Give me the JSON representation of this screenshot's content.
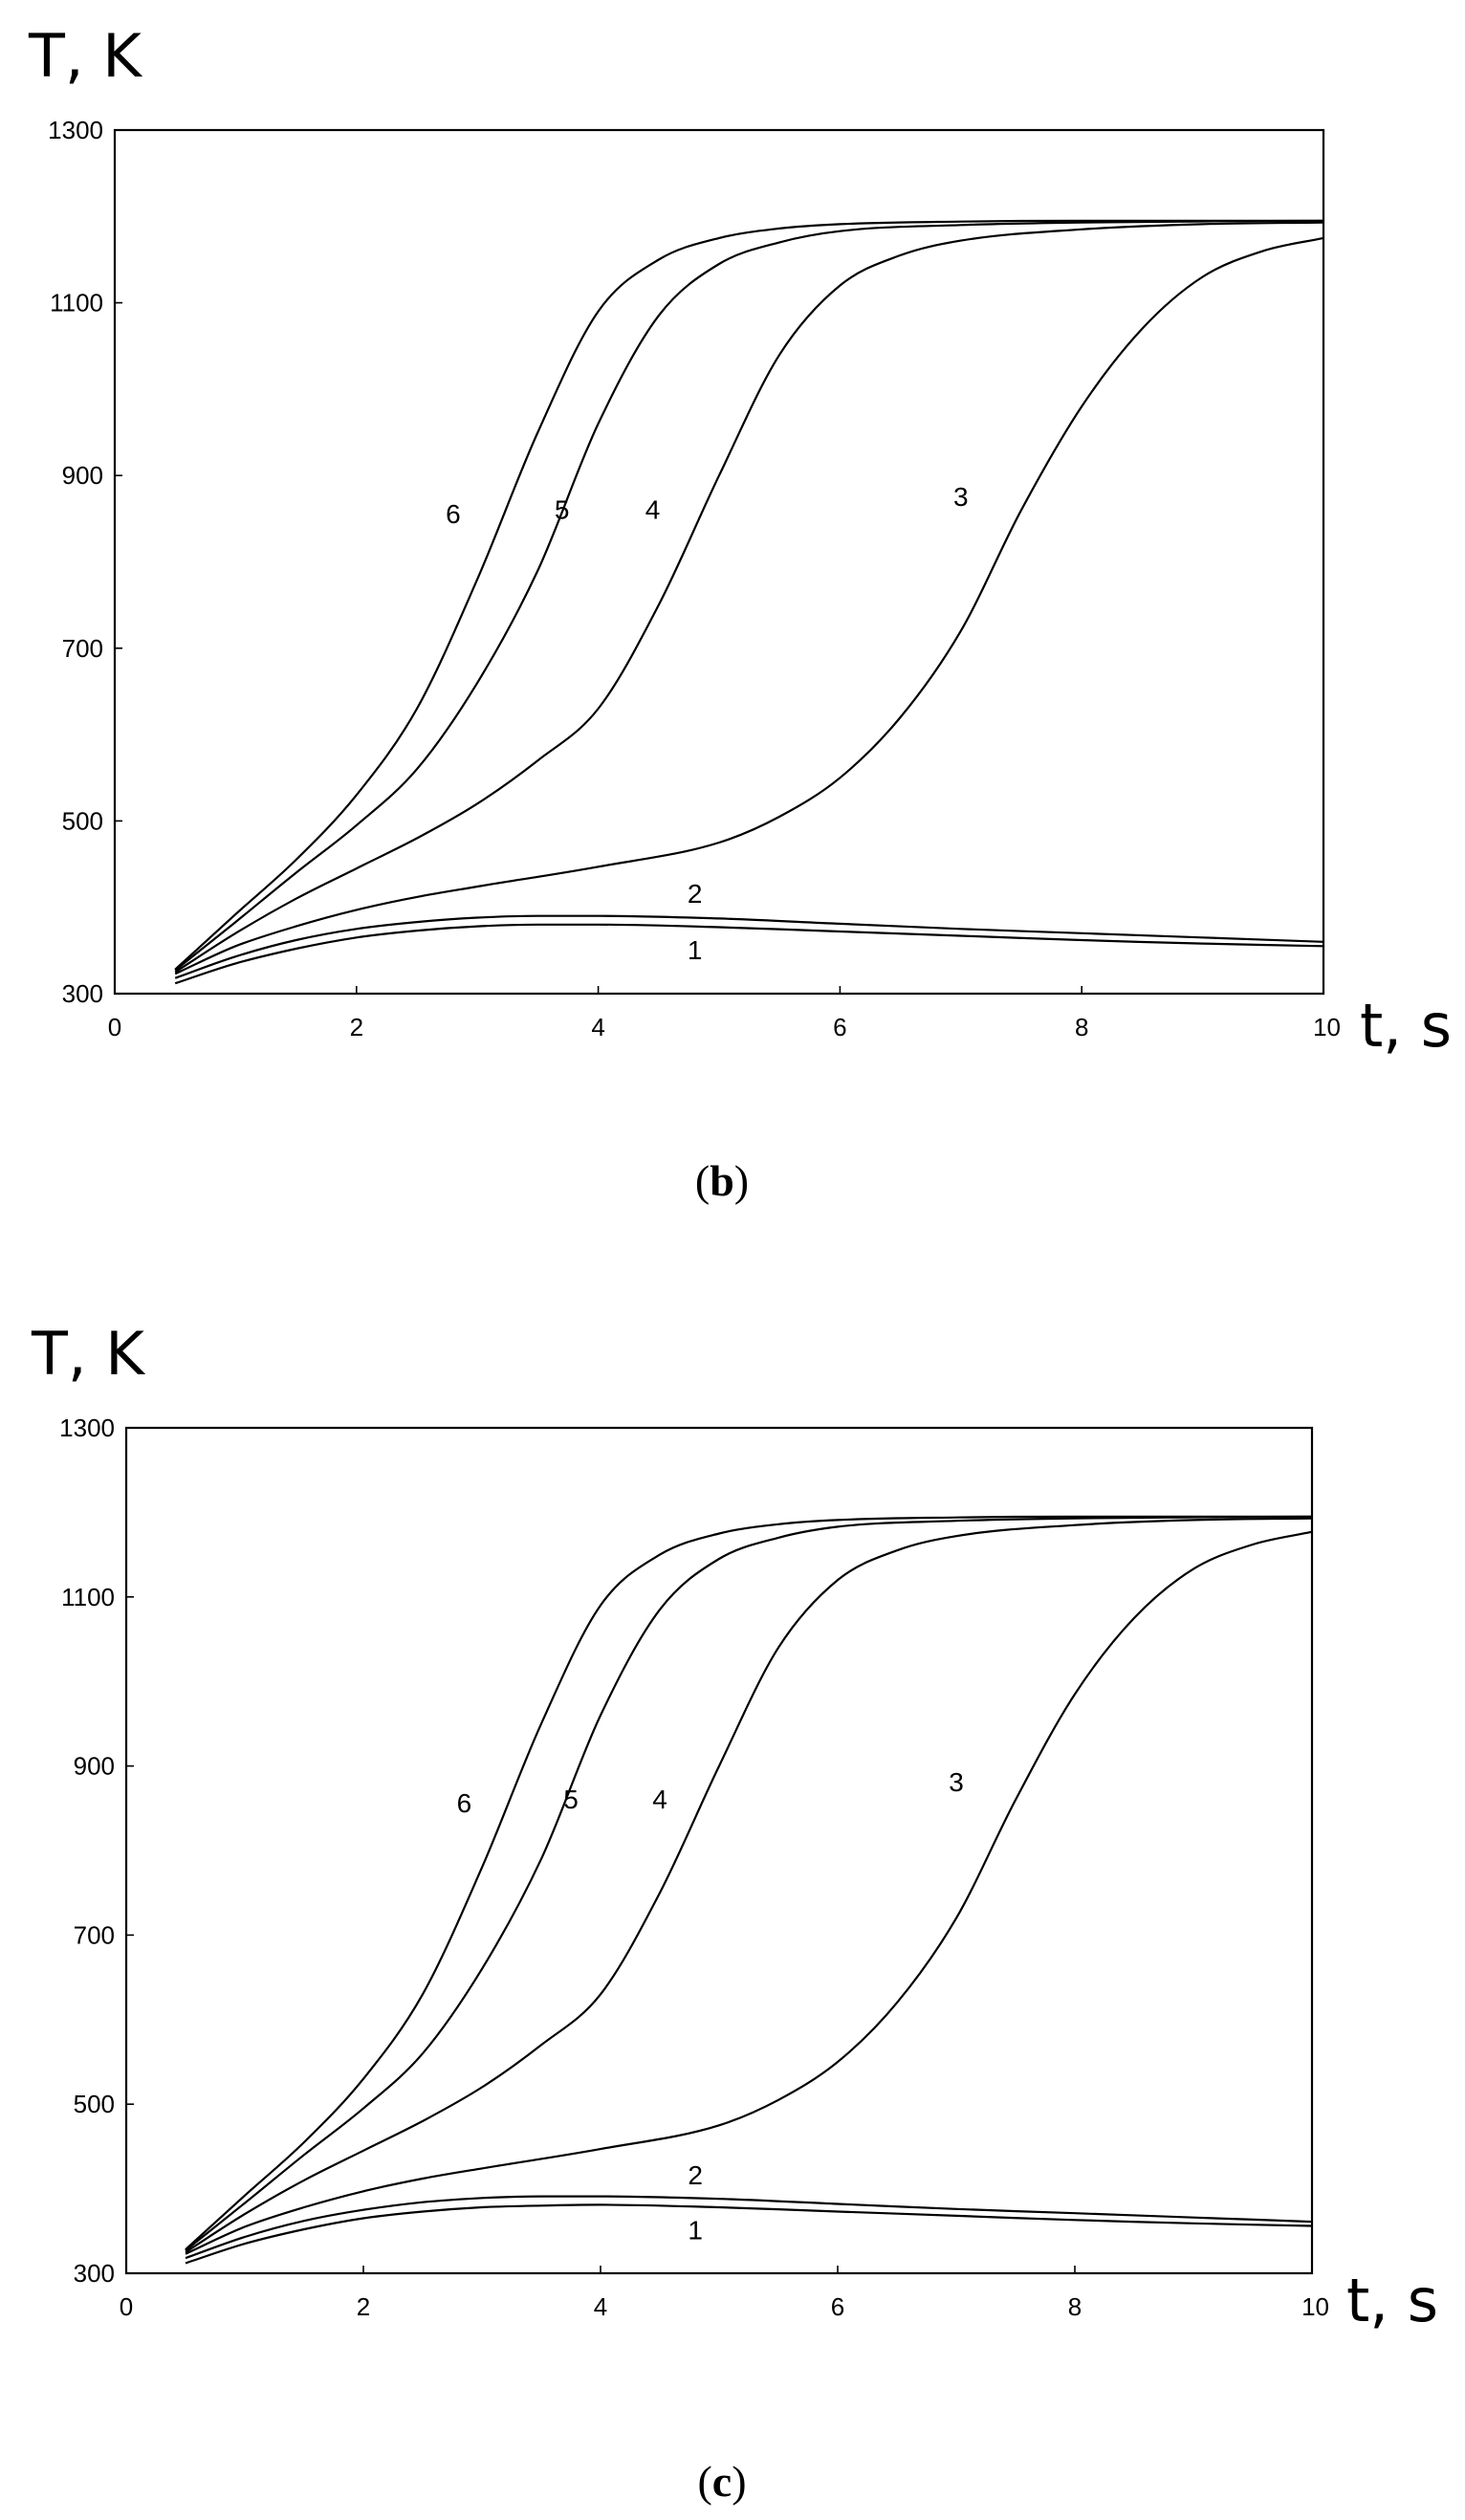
{
  "chart_data": [
    {
      "type": "line",
      "caption": {
        "open": "(",
        "letter": "b",
        "close": ")"
      },
      "ylabel": "T, K",
      "xlabel": "t, s",
      "xlim": [
        0,
        10
      ],
      "ylim": [
        300,
        1300
      ],
      "x_ticks": [
        0,
        2,
        4,
        6,
        8,
        10
      ],
      "y_ticks": [
        300,
        500,
        700,
        900,
        1100,
        1300
      ],
      "grid": false,
      "series": [
        {
          "name": "1",
          "x": [
            0.5,
            1,
            1.5,
            2,
            2.5,
            3,
            3.5,
            4,
            5,
            6,
            7,
            8,
            9,
            10
          ],
          "y": [
            312,
            335,
            352,
            365,
            373,
            378,
            380,
            380,
            377,
            372,
            367,
            362,
            358,
            355
          ]
        },
        {
          "name": "2",
          "x": [
            0.5,
            1,
            1.5,
            2,
            2.5,
            3,
            3.5,
            4,
            5,
            6,
            7,
            8,
            9,
            10
          ],
          "y": [
            318,
            343,
            362,
            375,
            383,
            388,
            390,
            390,
            387,
            381,
            375,
            370,
            365,
            360
          ]
        },
        {
          "name": "3",
          "x": [
            0.5,
            1,
            1.5,
            2,
            2.5,
            3,
            4,
            5,
            5.5,
            6,
            6.5,
            7,
            7.5,
            8,
            8.5,
            9,
            9.5,
            10
          ],
          "y": [
            323,
            355,
            378,
            397,
            412,
            424,
            447,
            475,
            505,
            550,
            620,
            720,
            860,
            980,
            1070,
            1130,
            1160,
            1175
          ]
        },
        {
          "name": "4",
          "x": [
            0.5,
            1,
            1.5,
            2,
            2.5,
            3,
            3.5,
            4,
            4.5,
            5,
            5.5,
            6,
            6.5,
            7,
            8,
            9,
            10
          ],
          "y": [
            325,
            370,
            410,
            445,
            480,
            520,
            570,
            630,
            750,
            900,
            1040,
            1120,
            1155,
            1172,
            1185,
            1191,
            1193
          ]
        },
        {
          "name": "5",
          "x": [
            0.5,
            1,
            1.5,
            2,
            2.5,
            3,
            3.5,
            4,
            4.5,
            5,
            5.5,
            6,
            7,
            8,
            10
          ],
          "y": [
            327,
            383,
            440,
            495,
            560,
            660,
            790,
            960,
            1085,
            1145,
            1170,
            1183,
            1190,
            1193,
            1195
          ]
        },
        {
          "name": "6",
          "x": [
            0.5,
            1,
            1.5,
            2,
            2.5,
            3,
            3.5,
            4,
            4.5,
            5,
            5.5,
            6,
            7,
            8,
            10
          ],
          "y": [
            328,
            392,
            455,
            530,
            630,
            780,
            950,
            1090,
            1150,
            1175,
            1186,
            1191,
            1194,
            1195,
            1195
          ]
        }
      ],
      "curve_labels": [
        {
          "text": "1",
          "x": 4.8,
          "y": 340
        },
        {
          "text": "2",
          "x": 4.8,
          "y": 405
        },
        {
          "text": "3",
          "x": 7.0,
          "y": 865
        },
        {
          "text": "4",
          "x": 4.45,
          "y": 850
        },
        {
          "text": "5",
          "x": 3.7,
          "y": 850
        },
        {
          "text": "6",
          "x": 2.8,
          "y": 845
        }
      ]
    },
    {
      "type": "line",
      "caption": {
        "open": "(",
        "letter": "c",
        "close": ")"
      },
      "ylabel": "T, K",
      "xlabel": "t, s",
      "xlim": [
        0,
        10
      ],
      "ylim": [
        300,
        1300
      ],
      "x_ticks": [
        0,
        2,
        4,
        6,
        8,
        10
      ],
      "y_ticks": [
        300,
        500,
        700,
        900,
        1100,
        1300
      ],
      "grid": false,
      "series": [
        {
          "name": "1",
          "x": [
            0.5,
            1,
            1.5,
            2,
            2.5,
            3,
            3.5,
            4,
            5,
            6,
            7,
            8,
            9,
            10
          ],
          "y": [
            312,
            335,
            352,
            365,
            373,
            378,
            380,
            381,
            378,
            373,
            368,
            363,
            359,
            356
          ]
        },
        {
          "name": "2",
          "x": [
            0.5,
            1,
            1.5,
            2,
            2.5,
            3,
            3.5,
            4,
            5,
            6,
            7,
            8,
            9,
            10
          ],
          "y": [
            318,
            343,
            362,
            375,
            384,
            389,
            391,
            391,
            388,
            382,
            376,
            371,
            366,
            361
          ]
        },
        {
          "name": "3",
          "x": [
            0.5,
            1,
            1.5,
            2,
            2.5,
            3,
            4,
            5,
            5.5,
            6,
            6.5,
            7,
            7.5,
            8,
            8.5,
            9,
            9.5,
            10
          ],
          "y": [
            323,
            355,
            378,
            397,
            412,
            424,
            447,
            475,
            505,
            550,
            620,
            720,
            860,
            985,
            1075,
            1133,
            1162,
            1177
          ]
        },
        {
          "name": "4",
          "x": [
            0.5,
            1,
            1.5,
            2,
            2.5,
            3,
            3.5,
            4,
            4.5,
            5,
            5.5,
            6,
            6.5,
            7,
            8,
            9,
            10
          ],
          "y": [
            325,
            370,
            410,
            445,
            480,
            520,
            570,
            630,
            750,
            900,
            1040,
            1120,
            1155,
            1172,
            1185,
            1191,
            1193
          ]
        },
        {
          "name": "5",
          "x": [
            0.5,
            1,
            1.5,
            2,
            2.5,
            3,
            3.5,
            4,
            4.5,
            5,
            5.5,
            6,
            7,
            8,
            10
          ],
          "y": [
            327,
            383,
            440,
            495,
            560,
            660,
            790,
            960,
            1085,
            1145,
            1170,
            1183,
            1190,
            1193,
            1195
          ]
        },
        {
          "name": "6",
          "x": [
            0.5,
            1,
            1.5,
            2,
            2.5,
            3,
            3.5,
            4,
            4.5,
            5,
            5.5,
            6,
            7,
            8,
            10
          ],
          "y": [
            328,
            392,
            455,
            530,
            630,
            780,
            950,
            1090,
            1150,
            1175,
            1186,
            1191,
            1194,
            1195,
            1195
          ]
        }
      ],
      "curve_labels": [
        {
          "text": "1",
          "x": 4.8,
          "y": 340
        },
        {
          "text": "2",
          "x": 4.8,
          "y": 405
        },
        {
          "text": "3",
          "x": 7.0,
          "y": 870
        },
        {
          "text": "4",
          "x": 4.5,
          "y": 850
        },
        {
          "text": "5",
          "x": 3.75,
          "y": 850
        },
        {
          "text": "6",
          "x": 2.85,
          "y": 845
        }
      ]
    }
  ]
}
